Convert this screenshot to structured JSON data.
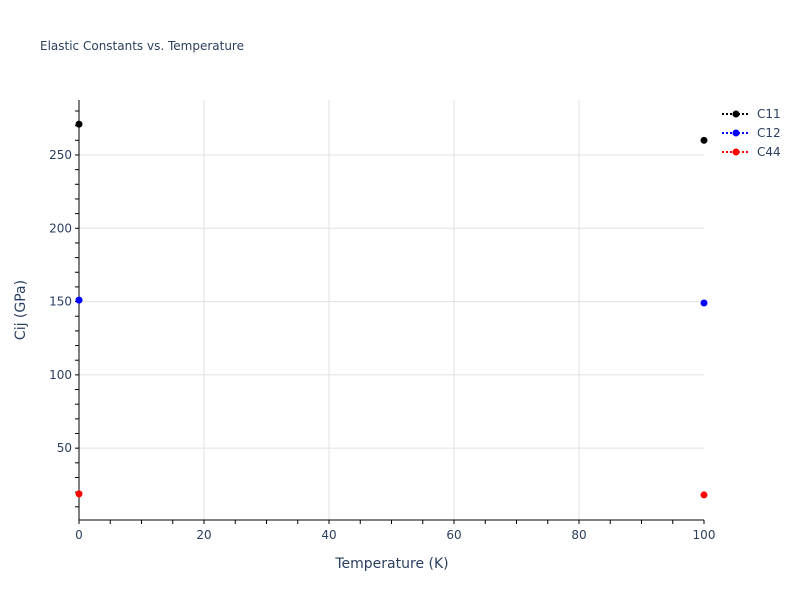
{
  "chart_data": {
    "type": "scatter",
    "title": "Elastic Constants vs. Temperature",
    "xlabel": "Temperature (K)",
    "ylabel": "Cij (GPa)",
    "xlim": [
      0,
      100
    ],
    "ylim": [
      1,
      287.5
    ],
    "xticks": [
      0,
      20,
      40,
      60,
      80,
      100
    ],
    "yticks": [
      50,
      100,
      150,
      200,
      250
    ],
    "grid": true,
    "legend_position": "top-right",
    "series": [
      {
        "name": "C11",
        "color": "#000000",
        "x": [
          0,
          100
        ],
        "y": [
          271,
          260
        ]
      },
      {
        "name": "C12",
        "color": "#0000ff",
        "x": [
          0,
          100
        ],
        "y": [
          151,
          149
        ]
      },
      {
        "name": "C44",
        "color": "#ff0000",
        "x": [
          0,
          100
        ],
        "y": [
          18.8,
          18.1
        ]
      }
    ]
  }
}
